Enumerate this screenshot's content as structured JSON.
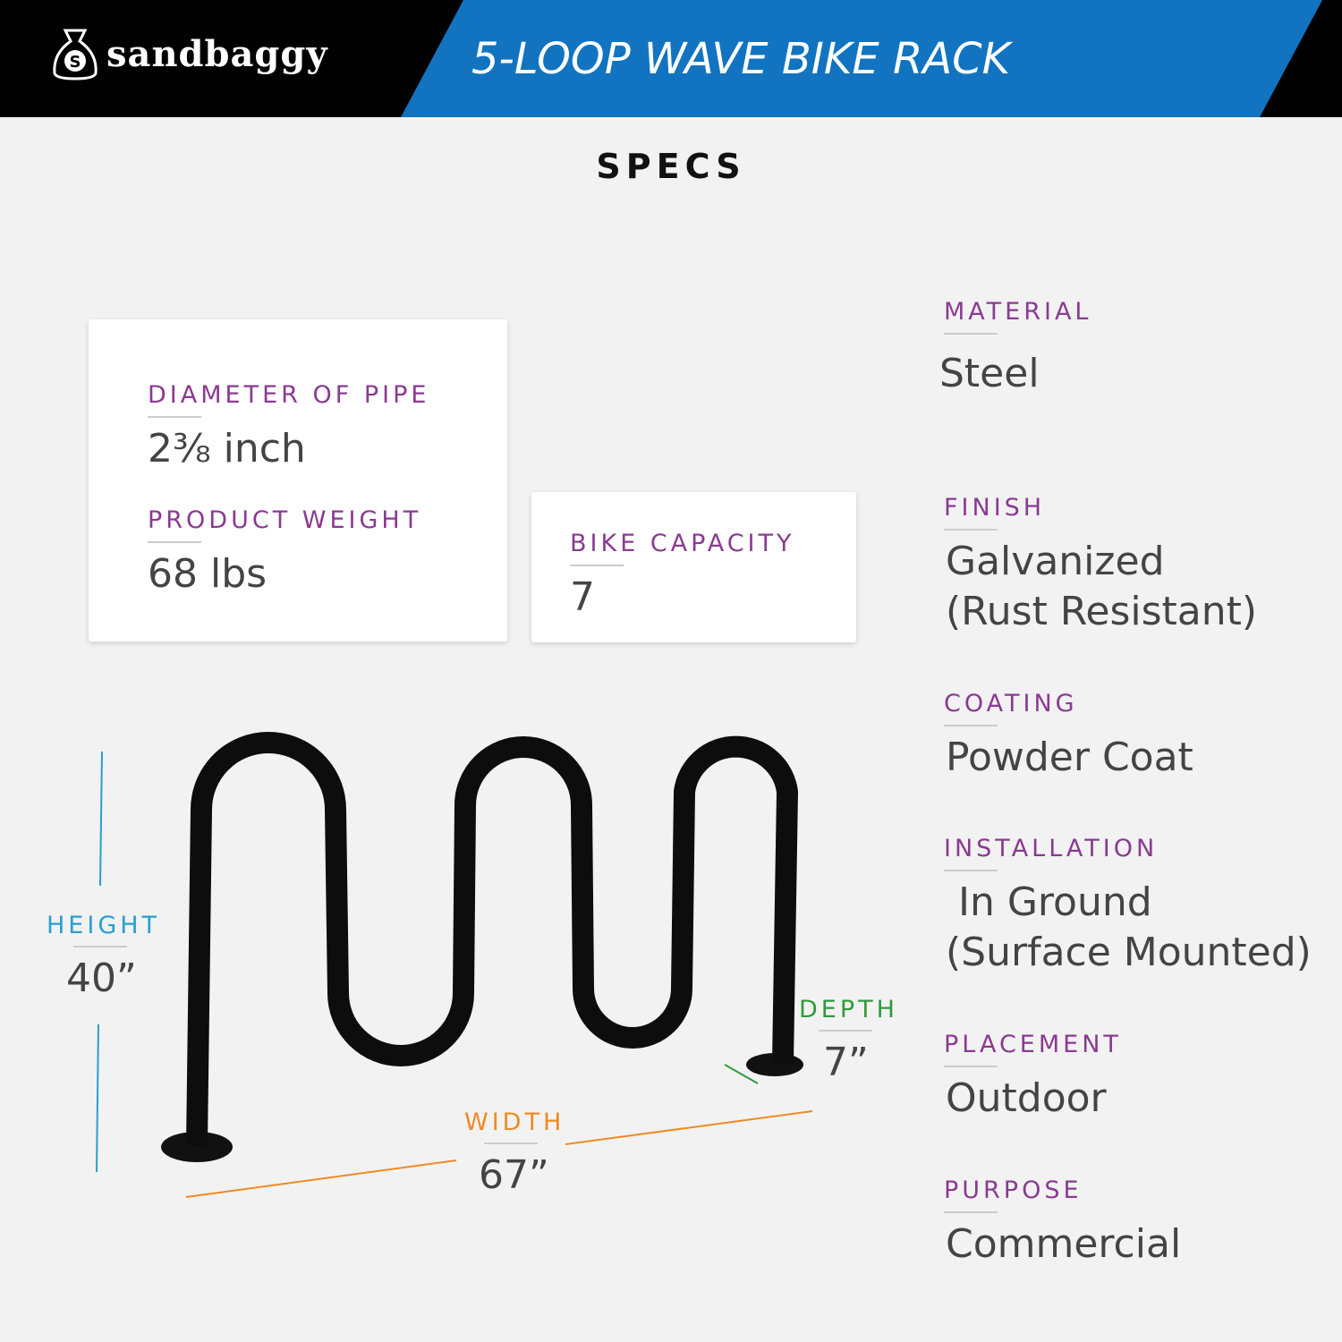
{
  "header": {
    "brand": "sandbaggy",
    "title": "5-LOOP WAVE BIKE RACK",
    "section_tab": "SPECS"
  },
  "colors": {
    "header_blue": "#1274c0",
    "label_purple": "#8a3a92",
    "height": "#2a9fd0",
    "width": "#ef8a22",
    "depth": "#2e9b3a"
  },
  "cards": [
    {
      "label": "DIAMETER OF PIPE",
      "value": "2⅜ inch"
    },
    {
      "label": "PRODUCT WEIGHT",
      "value": "68 lbs"
    },
    {
      "label": "BIKE CAPACITY",
      "value": "7"
    }
  ],
  "specs": [
    {
      "label": "MATERIAL",
      "value": "Steel"
    },
    {
      "label": "FINISH",
      "value": "Galvanized\n(Rust Resistant)"
    },
    {
      "label": "COATING",
      "value": "Powder Coat"
    },
    {
      "label": "INSTALLATION",
      "value": " In Ground\n(Surface Mounted)"
    },
    {
      "label": "PLACEMENT",
      "value": "Outdoor"
    },
    {
      "label": "PURPOSE",
      "value": "Commercial"
    }
  ],
  "dimensions": {
    "height": {
      "label": "HEIGHT",
      "value": "40”"
    },
    "width": {
      "label": "WIDTH",
      "value": "67”"
    },
    "depth": {
      "label": "DEPTH",
      "value": "7”"
    }
  }
}
